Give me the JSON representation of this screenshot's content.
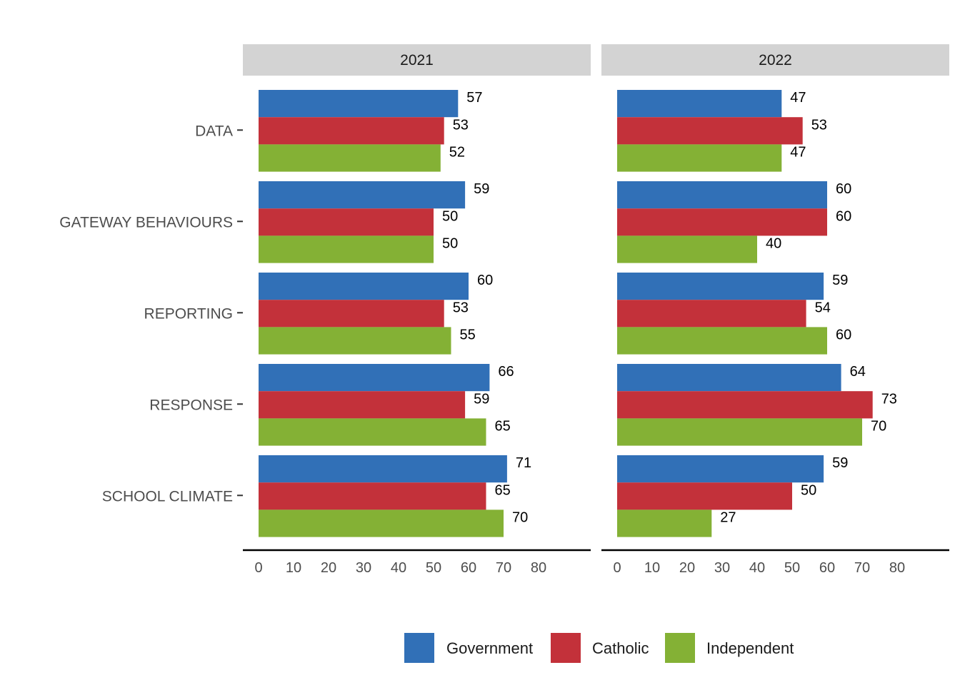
{
  "chart_data": {
    "type": "bar",
    "orientation": "horizontal",
    "facets": [
      "2021",
      "2022"
    ],
    "categories": [
      "DATA",
      "GATEWAY BEHAVIOURS",
      "REPORTING",
      "RESPONSE",
      "SCHOOL CLIMATE"
    ],
    "series": [
      {
        "name": "Government",
        "color": "#3170B7",
        "values": {
          "2021": [
            57,
            59,
            60,
            66,
            71
          ],
          "2022": [
            47,
            60,
            59,
            64,
            59
          ]
        }
      },
      {
        "name": "Catholic",
        "color": "#C3313A",
        "values": {
          "2021": [
            53,
            50,
            53,
            59,
            65
          ],
          "2022": [
            53,
            60,
            54,
            73,
            50
          ]
        }
      },
      {
        "name": "Independent",
        "color": "#84B135",
        "values": {
          "2021": [
            52,
            50,
            55,
            65,
            70
          ],
          "2022": [
            47,
            40,
            60,
            70,
            27
          ]
        }
      }
    ],
    "xticks": [
      0,
      10,
      20,
      30,
      40,
      50,
      60,
      70,
      80
    ],
    "xlim": [
      0,
      90
    ],
    "grid": false,
    "legend_position": "bottom"
  }
}
